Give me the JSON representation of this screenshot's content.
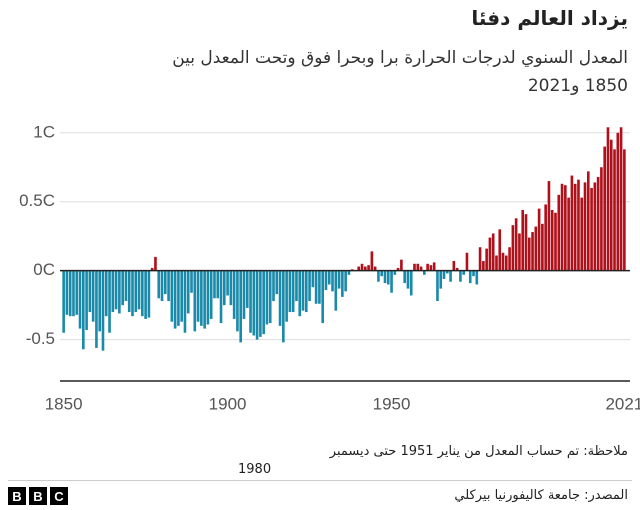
{
  "header": {
    "title": "يزداد العالم دفئا",
    "subtitle_line1": "المعدل السنوي لدرجات الحرارة برا وبحرا فوق وتحت المعدل بين",
    "subtitle_line2": "1850 و2021"
  },
  "chart_data": {
    "type": "bar",
    "x_start": 1850,
    "values": [
      -0.45,
      -0.32,
      -0.33,
      -0.33,
      -0.32,
      -0.42,
      -0.57,
      -0.43,
      -0.3,
      -0.37,
      -0.56,
      -0.44,
      -0.58,
      -0.33,
      -0.45,
      -0.3,
      -0.28,
      -0.31,
      -0.25,
      -0.22,
      -0.3,
      -0.33,
      -0.3,
      -0.28,
      -0.33,
      -0.35,
      -0.34,
      0.02,
      0.1,
      -0.2,
      -0.22,
      -0.17,
      -0.22,
      -0.37,
      -0.42,
      -0.4,
      -0.37,
      -0.45,
      -0.31,
      -0.16,
      -0.44,
      -0.37,
      -0.4,
      -0.42,
      -0.39,
      -0.35,
      -0.2,
      -0.2,
      -0.38,
      -0.25,
      -0.18,
      -0.25,
      -0.35,
      -0.44,
      -0.52,
      -0.35,
      -0.27,
      -0.45,
      -0.47,
      -0.5,
      -0.48,
      -0.46,
      -0.39,
      -0.38,
      -0.22,
      -0.17,
      -0.4,
      -0.52,
      -0.37,
      -0.3,
      -0.3,
      -0.22,
      -0.33,
      -0.29,
      -0.3,
      -0.22,
      -0.12,
      -0.24,
      -0.24,
      -0.38,
      -0.14,
      -0.1,
      -0.15,
      -0.29,
      -0.13,
      -0.19,
      -0.15,
      -0.03,
      0.01,
      0.0,
      0.03,
      0.05,
      0.03,
      0.04,
      0.14,
      0.03,
      -0.08,
      -0.04,
      -0.09,
      -0.1,
      -0.16,
      -0.03,
      0.02,
      0.08,
      -0.09,
      -0.13,
      -0.18,
      0.05,
      0.05,
      0.03,
      -0.03,
      0.05,
      0.04,
      0.06,
      -0.22,
      -0.13,
      -0.06,
      -0.02,
      -0.08,
      0.07,
      0.02,
      -0.08,
      -0.03,
      0.13,
      -0.09,
      -0.04,
      -0.1,
      0.17,
      0.07,
      0.16,
      0.24,
      0.27,
      0.11,
      0.3,
      0.13,
      0.11,
      0.17,
      0.33,
      0.38,
      0.27,
      0.44,
      0.41,
      0.24,
      0.28,
      0.32,
      0.45,
      0.34,
      0.48,
      0.65,
      0.44,
      0.42,
      0.55,
      0.63,
      0.62,
      0.53,
      0.69,
      0.63,
      0.66,
      0.53,
      0.64,
      0.72,
      0.6,
      0.64,
      0.68,
      0.75,
      0.9,
      1.04,
      0.95,
      0.88,
      1.0,
      1.04,
      0.88
    ],
    "positive_color": "#b0101a",
    "negative_color": "#1a8aab",
    "xlim": [
      1850,
      2021
    ],
    "xticks": [
      1850,
      1900,
      1950,
      2021
    ],
    "ylim": [
      -0.8,
      1.1
    ],
    "yticks": [
      -0.5,
      {
        "value": 0,
        "label": "0C"
      },
      {
        "value": 0.5,
        "label": "0.5C"
      },
      {
        "value": 1,
        "label": "1C"
      }
    ],
    "grid": true
  },
  "footer": {
    "note_line1": "ملاحظة: تم حساب المعدل من يناير 1951 حتى ديسمبر",
    "note_line2": "1980",
    "source": "المصدر: جامعة كاليفورنيا بيركلي",
    "logo": [
      "B",
      "B",
      "C"
    ]
  }
}
